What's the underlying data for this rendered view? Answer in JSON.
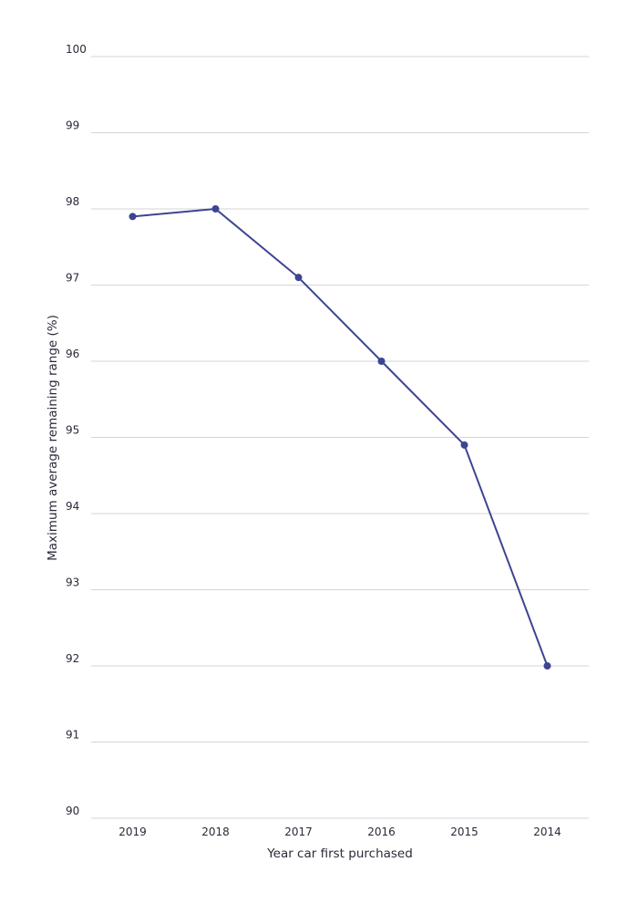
{
  "chart_data": {
    "type": "line",
    "title": "",
    "xlabel": "Year car first purchased",
    "ylabel": "Maximum average remaining range (%)",
    "categories": [
      "2019",
      "2018",
      "2017",
      "2016",
      "2015",
      "2014"
    ],
    "series": [
      {
        "values": [
          97.9,
          98.0,
          97.1,
          96.0,
          94.9,
          92.0
        ],
        "color": "#3d4591"
      }
    ],
    "ylim": [
      90,
      100
    ],
    "yticks": [
      90,
      91,
      92,
      93,
      94,
      95,
      96,
      97,
      98,
      99,
      100
    ],
    "grid": true,
    "legend": "none"
  }
}
